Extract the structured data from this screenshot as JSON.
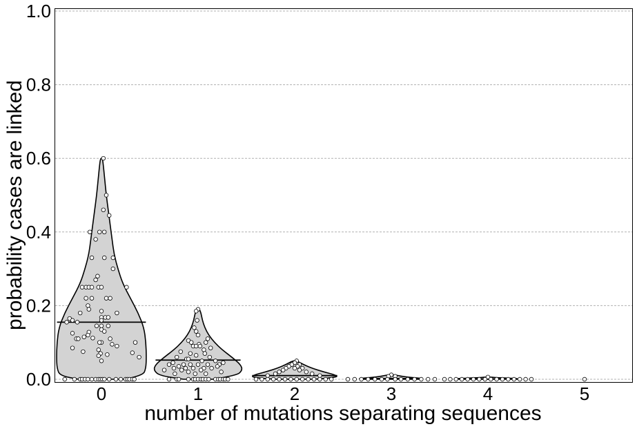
{
  "chart_data": {
    "type": "violin",
    "title": "",
    "xlabel": "number of mutations separating sequences",
    "ylabel": "probability cases are linked",
    "categories": [
      "0",
      "1",
      "2",
      "3",
      "4",
      "5"
    ],
    "ylim": [
      0.0,
      1.0
    ],
    "yticks": [
      "0.0",
      "0.2",
      "0.4",
      "0.6",
      "0.8",
      "1.0"
    ],
    "grid": {
      "y": true,
      "style": "dashed",
      "color": "#b0b0b0"
    },
    "violin_fill": "#d3d3d3",
    "violin_edge": "#000000",
    "point_fill": "#ffffff",
    "point_edge": "#000000",
    "medians": [
      0.155,
      0.052,
      0.01,
      0.002,
      0.001,
      0.0
    ],
    "max_values": [
      0.6,
      0.19,
      0.05,
      0.012,
      0.006,
      0.0
    ],
    "violins": [
      {
        "category": "0",
        "profile": [
          [
            0.0,
            0.24
          ],
          [
            0.01,
            0.43
          ],
          [
            0.03,
            0.46
          ],
          [
            0.06,
            0.465
          ],
          [
            0.1,
            0.46
          ],
          [
            0.14,
            0.44
          ],
          [
            0.18,
            0.38
          ],
          [
            0.22,
            0.3
          ],
          [
            0.26,
            0.22
          ],
          [
            0.3,
            0.17
          ],
          [
            0.34,
            0.13
          ],
          [
            0.38,
            0.11
          ],
          [
            0.42,
            0.09
          ],
          [
            0.46,
            0.07
          ],
          [
            0.5,
            0.05
          ],
          [
            0.54,
            0.035
          ],
          [
            0.58,
            0.02
          ],
          [
            0.6,
            0.01
          ]
        ]
      },
      {
        "category": "1",
        "profile": [
          [
            0.0,
            0.15
          ],
          [
            0.01,
            0.4
          ],
          [
            0.025,
            0.46
          ],
          [
            0.04,
            0.44
          ],
          [
            0.06,
            0.35
          ],
          [
            0.08,
            0.25
          ],
          [
            0.1,
            0.17
          ],
          [
            0.12,
            0.11
          ],
          [
            0.14,
            0.07
          ],
          [
            0.16,
            0.045
          ],
          [
            0.18,
            0.03
          ],
          [
            0.19,
            0.015
          ]
        ]
      },
      {
        "category": "2",
        "profile": [
          [
            0.0,
            0.2
          ],
          [
            0.005,
            0.45
          ],
          [
            0.012,
            0.42
          ],
          [
            0.02,
            0.3
          ],
          [
            0.03,
            0.18
          ],
          [
            0.04,
            0.09
          ],
          [
            0.05,
            0.02
          ]
        ]
      },
      {
        "category": "3",
        "profile": [
          [
            0.0,
            0.3
          ],
          [
            0.002,
            0.35
          ],
          [
            0.006,
            0.15
          ],
          [
            0.012,
            0.03
          ]
        ]
      },
      {
        "category": "4",
        "profile": [
          [
            0.0,
            0.3
          ],
          [
            0.002,
            0.33
          ],
          [
            0.004,
            0.1
          ],
          [
            0.006,
            0.02
          ]
        ]
      },
      {
        "category": "5",
        "profile": [
          [
            0.0,
            0.01
          ]
        ]
      }
    ],
    "points": {
      "0": [
        [
          0.6,
          0.02
        ],
        [
          0.5,
          0.05
        ],
        [
          0.46,
          0.02
        ],
        [
          0.445,
          0.08
        ],
        [
          0.4,
          -0.12
        ],
        [
          0.4,
          -0.02
        ],
        [
          0.4,
          0.03
        ],
        [
          0.38,
          -0.06
        ],
        [
          0.33,
          -0.1
        ],
        [
          0.33,
          0.03
        ],
        [
          0.33,
          0.12
        ],
        [
          0.3,
          0.12
        ],
        [
          0.28,
          -0.04
        ],
        [
          0.27,
          -0.06
        ],
        [
          0.25,
          -0.2
        ],
        [
          0.25,
          -0.16
        ],
        [
          0.25,
          -0.13
        ],
        [
          0.25,
          -0.1
        ],
        [
          0.25,
          -0.03
        ],
        [
          0.25,
          0.0
        ],
        [
          0.25,
          0.26
        ],
        [
          0.22,
          -0.16
        ],
        [
          0.22,
          -0.1
        ],
        [
          0.22,
          0.05
        ],
        [
          0.22,
          0.09
        ],
        [
          0.2,
          -0.14
        ],
        [
          0.19,
          -0.13
        ],
        [
          0.185,
          0.0
        ],
        [
          0.18,
          -0.22
        ],
        [
          0.18,
          0.16
        ],
        [
          0.168,
          0.0
        ],
        [
          0.168,
          0.04
        ],
        [
          0.168,
          0.07
        ],
        [
          0.165,
          -0.33
        ],
        [
          0.16,
          -0.3
        ],
        [
          0.16,
          0.0
        ],
        [
          0.155,
          -0.36
        ],
        [
          0.155,
          -0.25
        ],
        [
          0.145,
          -0.05
        ],
        [
          0.145,
          0.0
        ],
        [
          0.145,
          0.07
        ],
        [
          0.135,
          0.0
        ],
        [
          0.13,
          0.03
        ],
        [
          0.128,
          -0.13
        ],
        [
          0.125,
          -0.3
        ],
        [
          0.12,
          -0.14
        ],
        [
          0.115,
          -0.18
        ],
        [
          0.112,
          -0.09
        ],
        [
          0.11,
          -0.26
        ],
        [
          0.11,
          -0.24
        ],
        [
          0.11,
          0.09
        ],
        [
          0.1,
          0.0
        ],
        [
          0.1,
          -0.02
        ],
        [
          0.1,
          0.35
        ],
        [
          0.095,
          0.11
        ],
        [
          0.09,
          0.16
        ],
        [
          0.085,
          -0.3
        ],
        [
          0.08,
          -0.03
        ],
        [
          0.075,
          -0.19
        ],
        [
          0.072,
          0.32
        ],
        [
          0.07,
          -0.01
        ],
        [
          0.067,
          0.06
        ],
        [
          0.064,
          -0.03
        ],
        [
          0.06,
          0.39
        ],
        [
          0.05,
          0.0
        ],
        [
          0.0,
          -0.38
        ],
        [
          0.0,
          -0.28
        ],
        [
          0.0,
          -0.22
        ],
        [
          0.0,
          -0.2
        ],
        [
          0.0,
          -0.17
        ],
        [
          0.0,
          -0.14
        ],
        [
          0.0,
          -0.1
        ],
        [
          0.0,
          -0.06
        ],
        [
          0.0,
          -0.03
        ],
        [
          0.0,
          -0.01
        ],
        [
          0.0,
          0.01
        ],
        [
          0.0,
          0.03
        ],
        [
          0.0,
          0.08
        ],
        [
          0.0,
          0.15
        ],
        [
          0.0,
          0.2
        ],
        [
          0.0,
          0.25
        ],
        [
          0.0,
          0.27
        ],
        [
          0.0,
          0.29
        ],
        [
          0.0,
          0.32
        ],
        [
          0.0,
          0.34
        ]
      ],
      "1": [
        [
          0.19,
          0.0
        ],
        [
          0.185,
          -0.02
        ],
        [
          0.16,
          -0.01
        ],
        [
          0.14,
          -0.04
        ],
        [
          0.13,
          -0.02
        ],
        [
          0.12,
          0.0
        ],
        [
          0.11,
          0.1
        ],
        [
          0.105,
          -0.1
        ],
        [
          0.1,
          -0.07
        ],
        [
          0.1,
          0.08
        ],
        [
          0.095,
          0.01
        ],
        [
          0.09,
          -0.05
        ],
        [
          0.09,
          -0.02
        ],
        [
          0.09,
          0.02
        ],
        [
          0.085,
          0.13
        ],
        [
          0.08,
          0.06
        ],
        [
          0.075,
          -0.18
        ],
        [
          0.07,
          -0.08
        ],
        [
          0.07,
          0.07
        ],
        [
          0.065,
          -0.02
        ],
        [
          0.06,
          -0.22
        ],
        [
          0.06,
          0.12
        ],
        [
          0.055,
          -0.12
        ],
        [
          0.055,
          -0.1
        ],
        [
          0.05,
          0.04
        ],
        [
          0.05,
          0.18
        ],
        [
          0.045,
          -0.26
        ],
        [
          0.045,
          0.26
        ],
        [
          0.04,
          -0.3
        ],
        [
          0.04,
          -0.15
        ],
        [
          0.04,
          -0.08
        ],
        [
          0.04,
          0.0
        ],
        [
          0.04,
          0.1
        ],
        [
          0.04,
          0.22
        ],
        [
          0.035,
          -0.2
        ],
        [
          0.035,
          0.2
        ],
        [
          0.03,
          -0.25
        ],
        [
          0.03,
          -0.13
        ],
        [
          0.03,
          -0.05
        ],
        [
          0.03,
          0.06
        ],
        [
          0.03,
          0.14
        ],
        [
          0.025,
          -0.35
        ],
        [
          0.025,
          -0.17
        ],
        [
          0.025,
          0.03
        ],
        [
          0.02,
          -0.1
        ],
        [
          0.02,
          0.24
        ],
        [
          0.015,
          -0.24
        ],
        [
          0.015,
          -0.03
        ],
        [
          0.015,
          0.08
        ],
        [
          0.0,
          -0.3
        ],
        [
          0.0,
          -0.22
        ],
        [
          0.0,
          -0.2
        ],
        [
          0.0,
          -0.1
        ],
        [
          0.0,
          -0.05
        ],
        [
          0.0,
          -0.03
        ],
        [
          0.0,
          0.0
        ],
        [
          0.0,
          0.03
        ],
        [
          0.0,
          0.05
        ],
        [
          0.0,
          0.08
        ],
        [
          0.0,
          0.11
        ],
        [
          0.0,
          0.18
        ],
        [
          0.0,
          0.21
        ],
        [
          0.0,
          0.23
        ],
        [
          0.0,
          0.26
        ],
        [
          0.0,
          0.28
        ],
        [
          0.0,
          0.31
        ]
      ],
      "2": [
        [
          0.05,
          0.02
        ],
        [
          0.045,
          0.0
        ],
        [
          0.04,
          -0.03
        ],
        [
          0.04,
          0.05
        ],
        [
          0.035,
          -0.06
        ],
        [
          0.035,
          0.03
        ],
        [
          0.03,
          -0.09
        ],
        [
          0.03,
          0.0
        ],
        [
          0.03,
          0.08
        ],
        [
          0.025,
          -0.12
        ],
        [
          0.025,
          0.05
        ],
        [
          0.02,
          -0.16
        ],
        [
          0.02,
          0.12
        ],
        [
          0.015,
          -0.2
        ],
        [
          0.015,
          0.18
        ],
        [
          0.01,
          -0.28
        ],
        [
          0.01,
          0.26
        ],
        [
          0.0,
          -0.4
        ],
        [
          0.0,
          -0.34
        ],
        [
          0.0,
          -0.28
        ],
        [
          0.0,
          -0.22
        ],
        [
          0.0,
          -0.16
        ],
        [
          0.0,
          -0.1
        ],
        [
          0.0,
          -0.04
        ],
        [
          0.0,
          0.02
        ],
        [
          0.0,
          0.08
        ],
        [
          0.0,
          0.14
        ],
        [
          0.0,
          0.2
        ],
        [
          0.0,
          0.26
        ],
        [
          0.0,
          0.32
        ],
        [
          0.0,
          0.38
        ]
      ],
      "3": [
        [
          0.012,
          0.0
        ],
        [
          0.008,
          -0.03
        ],
        [
          0.008,
          0.04
        ],
        [
          0.0,
          -0.45
        ],
        [
          0.0,
          -0.38
        ],
        [
          0.0,
          -0.31
        ],
        [
          0.0,
          -0.24
        ],
        [
          0.0,
          -0.17
        ],
        [
          0.0,
          -0.1
        ],
        [
          0.0,
          -0.04
        ],
        [
          0.0,
          0.04
        ],
        [
          0.0,
          0.1
        ],
        [
          0.0,
          0.17
        ],
        [
          0.0,
          0.24
        ],
        [
          0.0,
          0.31
        ],
        [
          0.0,
          0.38
        ],
        [
          0.0,
          0.45
        ]
      ],
      "4": [
        [
          0.006,
          0.0
        ],
        [
          0.0,
          -0.45
        ],
        [
          0.0,
          -0.39
        ],
        [
          0.0,
          -0.33
        ],
        [
          0.0,
          -0.27
        ],
        [
          0.0,
          -0.21
        ],
        [
          0.0,
          -0.15
        ],
        [
          0.0,
          -0.09
        ],
        [
          0.0,
          -0.03
        ],
        [
          0.0,
          0.03
        ],
        [
          0.0,
          0.09
        ],
        [
          0.0,
          0.15
        ],
        [
          0.0,
          0.21
        ],
        [
          0.0,
          0.27
        ],
        [
          0.0,
          0.33
        ],
        [
          0.0,
          0.39
        ],
        [
          0.0,
          0.45
        ]
      ],
      "5": [
        [
          0.0,
          0.0
        ]
      ]
    }
  }
}
